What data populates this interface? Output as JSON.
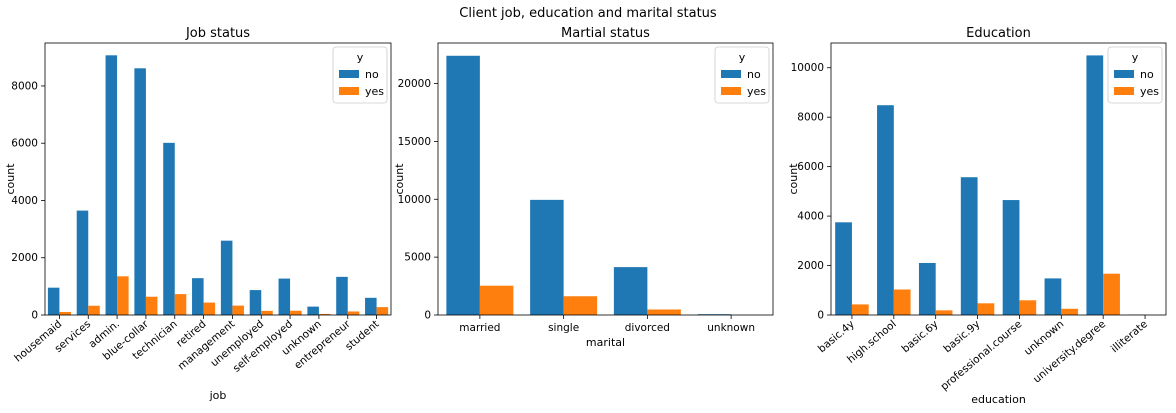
{
  "figure": {
    "suptitle": "Client job, education and marital status"
  },
  "colors": {
    "no": "#1f77b4",
    "yes": "#ff7f0e"
  },
  "chart_data": [
    {
      "type": "bar",
      "title": "Job status",
      "xlabel": "job",
      "ylabel": "count",
      "ylim": [
        0,
        9500
      ],
      "yticks": [
        0,
        2000,
        4000,
        6000,
        8000
      ],
      "ytick_labels": [
        "0",
        "2000",
        "4000",
        "6000",
        "8000"
      ],
      "rotate_xticks": true,
      "legend": {
        "title": "y",
        "placement": "top-right"
      },
      "categories": [
        "housemaid",
        "services",
        "admin.",
        "blue-collar",
        "technician",
        "retired",
        "management",
        "unemployed",
        "self-employed",
        "unknown",
        "entrepreneur",
        "student"
      ],
      "series": [
        {
          "name": "no",
          "values": [
            954,
            3646,
            9070,
            8616,
            6013,
            1286,
            2596,
            870,
            1272,
            293,
            1332,
            600
          ]
        },
        {
          "name": "yes",
          "values": [
            106,
            323,
            1352,
            638,
            730,
            434,
            328,
            144,
            149,
            37,
            124,
            275
          ]
        }
      ]
    },
    {
      "type": "bar",
      "title": "Martial status",
      "xlabel": "marital",
      "ylabel": "count",
      "ylim": [
        0,
        23500
      ],
      "yticks": [
        0,
        5000,
        10000,
        15000,
        20000
      ],
      "ytick_labels": [
        "0",
        "5000",
        "10000",
        "15000",
        "20000"
      ],
      "rotate_xticks": false,
      "legend": {
        "title": "y",
        "placement": "top-right"
      },
      "categories": [
        "married",
        "single",
        "divorced",
        "unknown"
      ],
      "series": [
        {
          "name": "no",
          "values": [
            22396,
            9948,
            4136,
            68
          ]
        },
        {
          "name": "yes",
          "values": [
            2532,
            1620,
            476,
            12
          ]
        }
      ]
    },
    {
      "type": "bar",
      "title": "Education",
      "xlabel": "education",
      "ylabel": "count",
      "ylim": [
        0,
        11000
      ],
      "yticks": [
        0,
        2000,
        4000,
        6000,
        8000,
        10000
      ],
      "ytick_labels": [
        "0",
        "2000",
        "4000",
        "6000",
        "8000",
        "10000"
      ],
      "rotate_xticks": true,
      "legend": {
        "title": "y",
        "placement": "top-right"
      },
      "categories": [
        "basic.4y",
        "high.school",
        "basic.6y",
        "basic.9y",
        "professional.course",
        "unknown",
        "university.degree",
        "illiterate"
      ],
      "series": [
        {
          "name": "no",
          "values": [
            3748,
            8484,
            2104,
            5572,
            4648,
            1480,
            10498,
            14
          ]
        },
        {
          "name": "yes",
          "values": [
            428,
            1031,
            188,
            473,
            595,
            251,
            1670,
            4
          ]
        }
      ]
    }
  ]
}
